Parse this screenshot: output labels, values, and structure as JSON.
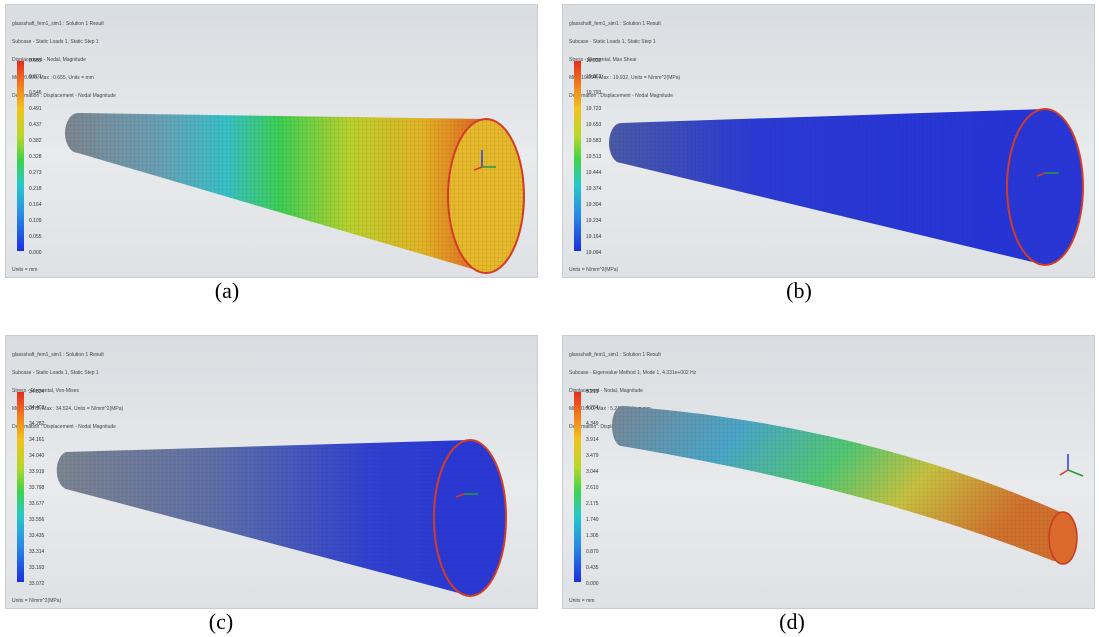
{
  "panels": [
    {
      "caption": "(a)",
      "header": [
        "glassshaft_fem1_sim1 : Solution 1 Result",
        "Subcase - Static Loads 1, Static Step 1",
        "Displacement - Nodal, Magnitude",
        "Min : 0.000, Max : 0.655, Units = mm",
        "Deformation : Displacement - Nodal Magnitude"
      ],
      "ticks": [
        "0.655",
        "0.601",
        "0.546",
        "0.491",
        "0.437",
        "0.382",
        "0.328",
        "0.273",
        "0.218",
        "0.164",
        "0.109",
        "0.055",
        "0.000"
      ],
      "units": "Units = mm"
    },
    {
      "caption": "(b)",
      "header": [
        "glassshaft_fem1_sim1 : Solution 1 Result",
        "Subcase - Static Loads 1, Static Step 1",
        "Stress - Elemental, Max Shear",
        "Min : 19.094, Max : 19.932, Units = N/mm^2(MPa)",
        "Deformation : Displacement - Nodal Magnitude"
      ],
      "ticks": [
        "19.932",
        "19.863",
        "19.793",
        "19.723",
        "19.653",
        "19.583",
        "19.513",
        "19.444",
        "19.374",
        "19.304",
        "19.234",
        "19.164",
        "19.094"
      ],
      "units": "Units = N/mm^2(MPa)"
    },
    {
      "caption": "(c)",
      "header": [
        "glassshaft_fem1_sim1 : Solution 1 Result",
        "Subcase - Static Loads 1, Static Step 1",
        "Stress - Elemental, Von-Mises",
        "Min : 33.072, Max : 34.524, Units = N/mm^2(MPa)",
        "Deformation : Displacement - Nodal Magnitude"
      ],
      "ticks": [
        "34.524",
        "34.403",
        "34.282",
        "34.161",
        "34.040",
        "33.919",
        "33.798",
        "33.677",
        "33.556",
        "33.435",
        "33.314",
        "33.193",
        "33.072"
      ],
      "units": "Units = N/mm^2(MPa)"
    },
    {
      "caption": "(d)",
      "header": [
        "glassshaft_fem1_sim1 : Solution 1 Result",
        "Subcase - Eigenvalue Method 1, Mode 1, 4.331e+002 Hz",
        "Displacement - Nodal, Magnitude",
        "Min : 0.000, Max : 5.219, Units = mm",
        "Deformation : Displacement - Nodal Magnitude"
      ],
      "ticks": [
        "5.219",
        "4.784",
        "4.349",
        "3.914",
        "3.479",
        "3.044",
        "2.610",
        "2.175",
        "1.740",
        "1.305",
        "0.870",
        "0.435",
        "0.000"
      ],
      "units": "Units = mm"
    }
  ]
}
